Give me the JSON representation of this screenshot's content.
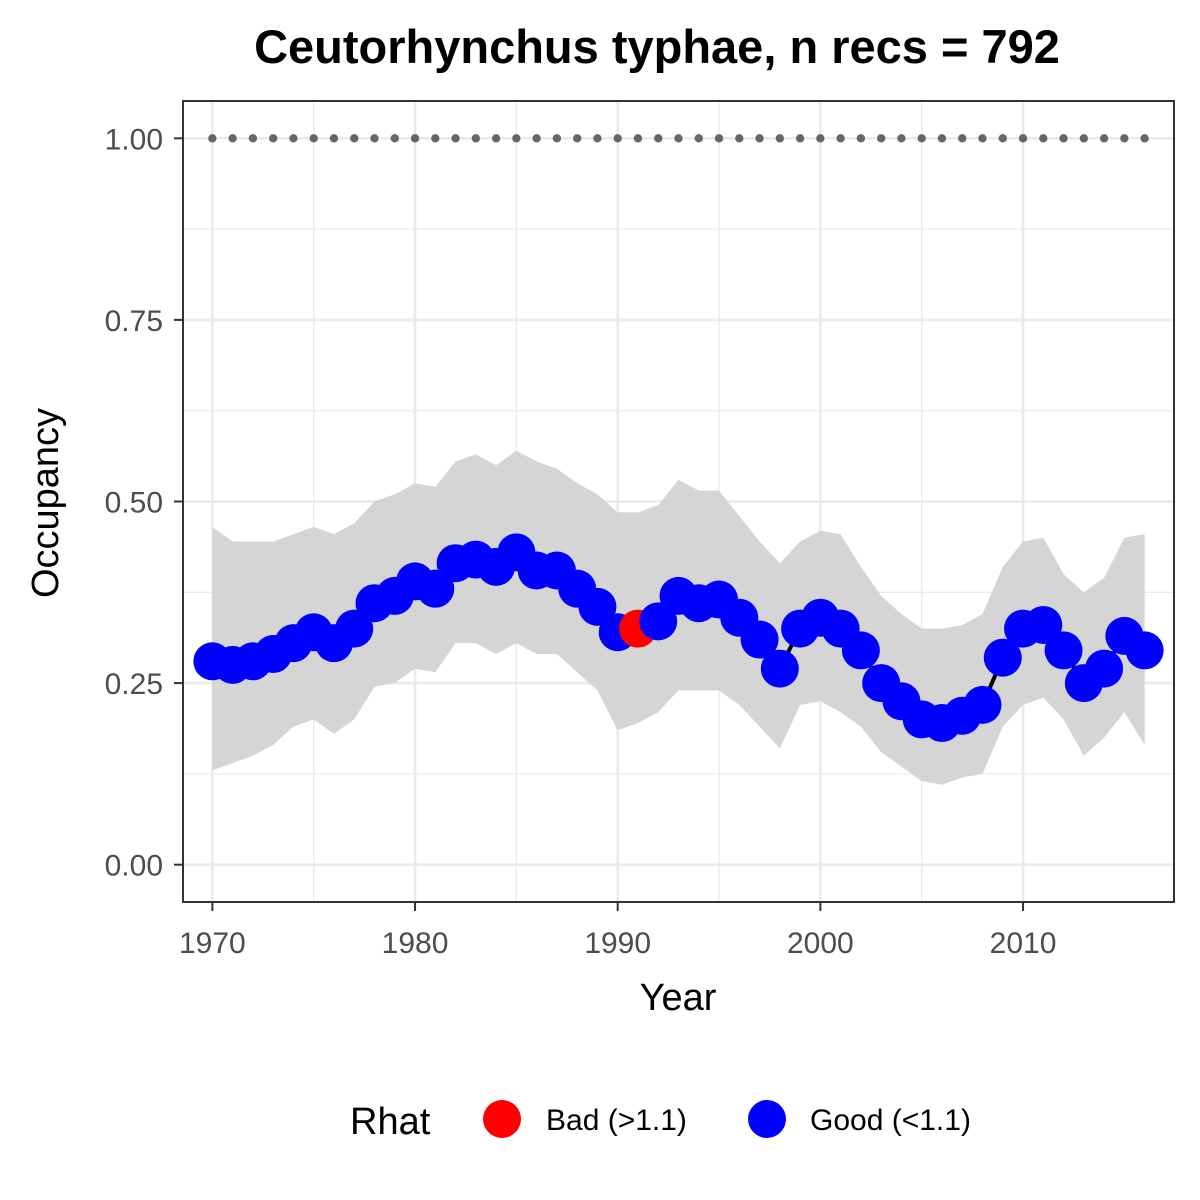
{
  "chart_data": {
    "type": "line",
    "title": "Ceutorhynchus typhae, n recs = 792",
    "xlabel": "Year",
    "ylabel": "Occupancy",
    "xlim": [
      1968.6,
      2017.4
    ],
    "ylim": [
      -0.05,
      1.05
    ],
    "xticks": [
      1970,
      1980,
      1990,
      2000,
      2010
    ],
    "yticks": [
      0.0,
      0.25,
      0.5,
      0.75,
      1.0
    ],
    "ytick_labels": [
      "0.00",
      "0.25",
      "0.50",
      "0.75",
      "1.00"
    ],
    "grid": true,
    "legend_position": "bottom",
    "years": [
      1970,
      1971,
      1972,
      1973,
      1974,
      1975,
      1976,
      1977,
      1978,
      1979,
      1980,
      1981,
      1982,
      1983,
      1984,
      1985,
      1986,
      1987,
      1988,
      1989,
      1990,
      1991,
      1992,
      1993,
      1994,
      1995,
      1996,
      1997,
      1998,
      1999,
      2000,
      2001,
      2002,
      2003,
      2004,
      2005,
      2006,
      2007,
      2008,
      2009,
      2010,
      2011,
      2012,
      2013,
      2014,
      2015,
      2016
    ],
    "occupancy": [
      0.28,
      0.275,
      0.28,
      0.29,
      0.305,
      0.32,
      0.305,
      0.325,
      0.36,
      0.37,
      0.39,
      0.38,
      0.415,
      0.42,
      0.41,
      0.43,
      0.405,
      0.405,
      0.38,
      0.355,
      0.32,
      0.325,
      0.335,
      0.37,
      0.36,
      0.365,
      0.34,
      0.31,
      0.27,
      0.325,
      0.34,
      0.325,
      0.295,
      0.25,
      0.225,
      0.2,
      0.195,
      0.205,
      0.22,
      0.285,
      0.325,
      0.33,
      0.295,
      0.25,
      0.27,
      0.315,
      0.295
    ],
    "lower": [
      0.13,
      0.14,
      0.15,
      0.165,
      0.19,
      0.2,
      0.18,
      0.2,
      0.245,
      0.25,
      0.27,
      0.265,
      0.305,
      0.305,
      0.29,
      0.305,
      0.29,
      0.29,
      0.265,
      0.24,
      0.185,
      0.195,
      0.21,
      0.24,
      0.24,
      0.24,
      0.22,
      0.19,
      0.16,
      0.22,
      0.225,
      0.21,
      0.19,
      0.155,
      0.135,
      0.115,
      0.11,
      0.12,
      0.125,
      0.19,
      0.22,
      0.23,
      0.2,
      0.15,
      0.175,
      0.21,
      0.165
    ],
    "upper": [
      0.465,
      0.445,
      0.445,
      0.445,
      0.455,
      0.465,
      0.455,
      0.47,
      0.5,
      0.51,
      0.525,
      0.52,
      0.555,
      0.565,
      0.55,
      0.57,
      0.555,
      0.545,
      0.525,
      0.51,
      0.485,
      0.485,
      0.495,
      0.53,
      0.515,
      0.515,
      0.48,
      0.445,
      0.415,
      0.445,
      0.46,
      0.455,
      0.41,
      0.37,
      0.345,
      0.325,
      0.325,
      0.33,
      0.345,
      0.41,
      0.445,
      0.45,
      0.4,
      0.375,
      0.395,
      0.45,
      0.455
    ],
    "rhat": [
      "Good (<1.1)",
      "Good (<1.1)",
      "Good (<1.1)",
      "Good (<1.1)",
      "Good (<1.1)",
      "Good (<1.1)",
      "Good (<1.1)",
      "Good (<1.1)",
      "Good (<1.1)",
      "Good (<1.1)",
      "Good (<1.1)",
      "Good (<1.1)",
      "Good (<1.1)",
      "Good (<1.1)",
      "Good (<1.1)",
      "Good (<1.1)",
      "Good (<1.1)",
      "Good (<1.1)",
      "Good (<1.1)",
      "Good (<1.1)",
      "Good (<1.1)",
      "Bad (>1.1)",
      "Good (<1.1)",
      "Good (<1.1)",
      "Good (<1.1)",
      "Good (<1.1)",
      "Good (<1.1)",
      "Good (<1.1)",
      "Good (<1.1)",
      "Good (<1.1)",
      "Good (<1.1)",
      "Good (<1.1)",
      "Good (<1.1)",
      "Good (<1.1)",
      "Good (<1.1)",
      "Good (<1.1)",
      "Good (<1.1)",
      "Good (<1.1)",
      "Good (<1.1)",
      "Good (<1.1)",
      "Good (<1.1)",
      "Good (<1.1)",
      "Good (<1.1)",
      "Good (<1.1)",
      "Good (<1.1)",
      "Good (<1.1)",
      "Good (<1.1)"
    ],
    "reference_line": 1.0,
    "legend": {
      "title": "Rhat",
      "entries": [
        {
          "label": "Bad (>1.1)",
          "color": "#ff0000"
        },
        {
          "label": "Good (<1.1)",
          "color": "#0000ff"
        }
      ]
    },
    "colors": {
      "ribbon": "#d3d3d3",
      "line": "#000000",
      "reference_dots": "#666666",
      "grid": "#ebebeb",
      "panel_border": "#333333"
    }
  }
}
